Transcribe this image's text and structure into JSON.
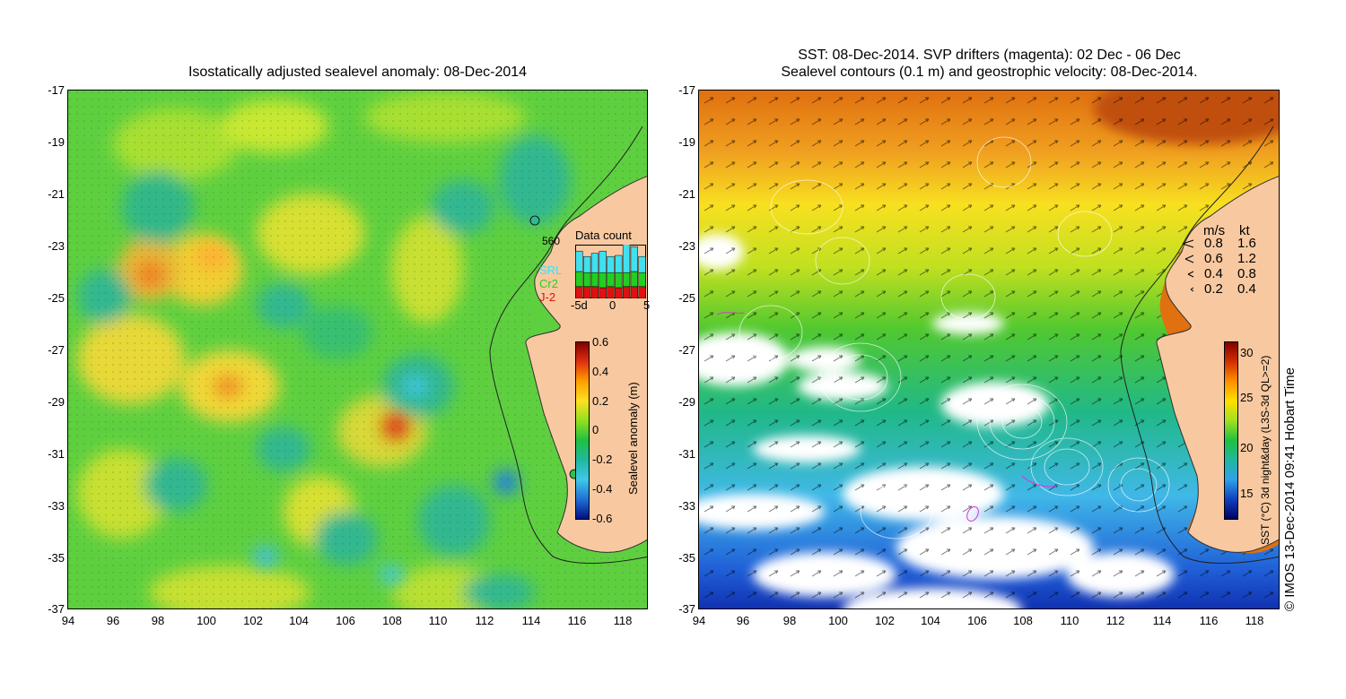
{
  "left_panel": {
    "title": "Isostatically adjusted sealevel anomaly: 08-Dec-2014",
    "lat_ticks": [
      "-17",
      "-19",
      "-21",
      "-23",
      "-25",
      "-27",
      "-29",
      "-31",
      "-33",
      "-35",
      "-37"
    ],
    "lon_ticks": [
      "94",
      "96",
      "98",
      "100",
      "102",
      "104",
      "106",
      "108",
      "110",
      "112",
      "114",
      "116",
      "118"
    ],
    "colorbar": {
      "label": "Sealevel anomaly (m)",
      "ticks": [
        "0.6",
        "0.4",
        "0.2",
        "0",
        "-0.2",
        "-0.4",
        "-0.6"
      ],
      "colors": [
        "#800000",
        "#e03010",
        "#ffa000",
        "#ffe020",
        "#90e020",
        "#20c040",
        "#20b8a0",
        "#40c8e8",
        "#2070d8",
        "#001080"
      ]
    },
    "inset": {
      "title": "Data count",
      "max_label": "560",
      "x_ticks": [
        "-5d",
        "0",
        "5"
      ],
      "legend": [
        {
          "label": "SRL",
          "color": "#40e0f0"
        },
        {
          "label": "Cr2",
          "color": "#20d020"
        },
        {
          "label": "J-2",
          "color": "#e01010"
        }
      ],
      "bars": [
        {
          "srl": 0.38,
          "cr2": 0.28,
          "j2": 0.22
        },
        {
          "srl": 0.3,
          "cr2": 0.26,
          "j2": 0.22
        },
        {
          "srl": 0.36,
          "cr2": 0.26,
          "j2": 0.22
        },
        {
          "srl": 0.4,
          "cr2": 0.28,
          "j2": 0.2
        },
        {
          "srl": 0.3,
          "cr2": 0.26,
          "j2": 0.22
        },
        {
          "srl": 0.32,
          "cr2": 0.28,
          "j2": 0.2
        },
        {
          "srl": 0.62,
          "cr2": 0.26,
          "j2": 0.22
        },
        {
          "srl": 0.46,
          "cr2": 0.28,
          "j2": 0.22
        },
        {
          "srl": 0.3,
          "cr2": 0.26,
          "j2": 0.22
        }
      ]
    }
  },
  "right_panel": {
    "title_line1": "SST: 08-Dec-2014. SVP drifters (magenta): 02 Dec - 06 Dec",
    "title_line2": "Sealevel contours (0.1 m) and geostrophic velocity: 08-Dec-2014.",
    "lat_ticks": [
      "-17",
      "-19",
      "-21",
      "-23",
      "-25",
      "-27",
      "-29",
      "-31",
      "-33",
      "-35",
      "-37"
    ],
    "lon_ticks": [
      "94",
      "96",
      "98",
      "100",
      "102",
      "104",
      "106",
      "108",
      "110",
      "112",
      "114",
      "116",
      "118"
    ],
    "velocity_key": {
      "header_ms": "m/s",
      "header_kt": "kt",
      "rows": [
        {
          "ms": "0.8",
          "kt": "1.6"
        },
        {
          "ms": "0.6",
          "kt": "1.2"
        },
        {
          "ms": "0.4",
          "kt": "0.8"
        },
        {
          "ms": "0.2",
          "kt": "0.4"
        }
      ]
    },
    "colorbar": {
      "label": "SST (°C) 3d night&day (L3S-3d QL>=2)",
      "ticks": [
        "30",
        "25",
        "20",
        "15"
      ],
      "colors": [
        "#800000",
        "#d03000",
        "#ff9000",
        "#ffe000",
        "#a0e020",
        "#20c040",
        "#20b8a0",
        "#30a0e8",
        "#1040c0",
        "#000060"
      ]
    }
  },
  "credit": "© IMOS 13-Dec-2014 09:41 Hobart Time"
}
